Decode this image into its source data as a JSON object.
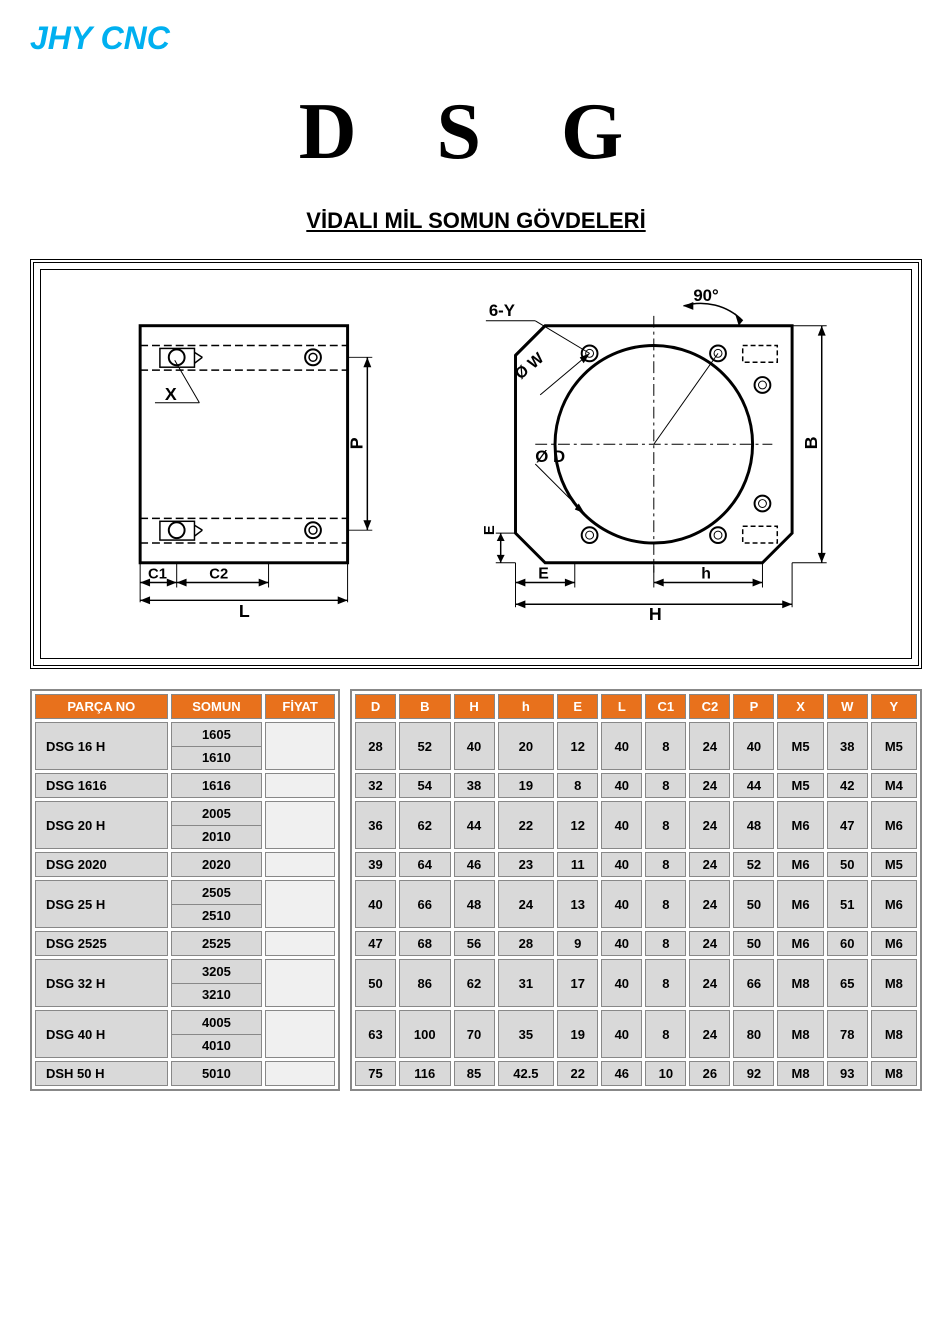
{
  "logo": "JHY CNC",
  "title": "D S G",
  "subtitle": "VİDALI MİL SOMUN GÖVDELERİ",
  "diagram": {
    "labels": {
      "x": "X",
      "p": "P",
      "c1": "C1",
      "c2": "C2",
      "l": "L",
      "sixY": "6-Y",
      "ninety": "90°",
      "ow": "Ø W",
      "od": "Ø D",
      "e": "E",
      "h_small": "h",
      "h_big": "H",
      "b": "B",
      "e_vert": "E"
    }
  },
  "leftTable": {
    "headers": [
      "PARÇA NO",
      "SOMUN",
      "FİYAT"
    ],
    "rows": [
      {
        "part": "DSG 16 H",
        "somun": [
          "1605",
          "1610"
        ],
        "tall": true
      },
      {
        "part": "DSG 1616",
        "somun": [
          "1616"
        ],
        "tall": false
      },
      {
        "part": "DSG 20 H",
        "somun": [
          "2005",
          "2010"
        ],
        "tall": true
      },
      {
        "part": "DSG 2020",
        "somun": [
          "2020"
        ],
        "tall": false
      },
      {
        "part": "DSG 25 H",
        "somun": [
          "2505",
          "2510"
        ],
        "tall": true
      },
      {
        "part": "DSG 2525",
        "somun": [
          "2525"
        ],
        "tall": false
      },
      {
        "part": "DSG 32 H",
        "somun": [
          "3205",
          "3210"
        ],
        "tall": true
      },
      {
        "part": "DSG 40 H",
        "somun": [
          "4005",
          "4010"
        ],
        "tall": true
      },
      {
        "part": "DSH 50 H",
        "somun": [
          "5010"
        ],
        "tall": false
      }
    ]
  },
  "rightTable": {
    "headers": [
      "D",
      "B",
      "H",
      "h",
      "E",
      "L",
      "C1",
      "C2",
      "P",
      "X",
      "W",
      "Y"
    ],
    "rows": [
      [
        "28",
        "52",
        "40",
        "20",
        "12",
        "40",
        "8",
        "24",
        "40",
        "M5",
        "38",
        "M5"
      ],
      [
        "32",
        "54",
        "38",
        "19",
        "8",
        "40",
        "8",
        "24",
        "44",
        "M5",
        "42",
        "M4"
      ],
      [
        "36",
        "62",
        "44",
        "22",
        "12",
        "40",
        "8",
        "24",
        "48",
        "M6",
        "47",
        "M6"
      ],
      [
        "39",
        "64",
        "46",
        "23",
        "11",
        "40",
        "8",
        "24",
        "52",
        "M6",
        "50",
        "M5"
      ],
      [
        "40",
        "66",
        "48",
        "24",
        "13",
        "40",
        "8",
        "24",
        "50",
        "M6",
        "51",
        "M6"
      ],
      [
        "47",
        "68",
        "56",
        "28",
        "9",
        "40",
        "8",
        "24",
        "50",
        "M6",
        "60",
        "M6"
      ],
      [
        "50",
        "86",
        "62",
        "31",
        "17",
        "40",
        "8",
        "24",
        "66",
        "M8",
        "65",
        "M8"
      ],
      [
        "63",
        "100",
        "70",
        "35",
        "19",
        "40",
        "8",
        "24",
        "80",
        "M8",
        "78",
        "M8"
      ],
      [
        "75",
        "116",
        "85",
        "42.5",
        "22",
        "46",
        "10",
        "26",
        "92",
        "M8",
        "93",
        "M8"
      ]
    ],
    "tall": [
      true,
      false,
      true,
      false,
      true,
      false,
      true,
      true,
      false
    ]
  },
  "colors": {
    "header_bg": "#e8711c",
    "header_fg": "#ffffff",
    "cell_bg": "#d9d9d9",
    "logo": "#00b0f0"
  }
}
